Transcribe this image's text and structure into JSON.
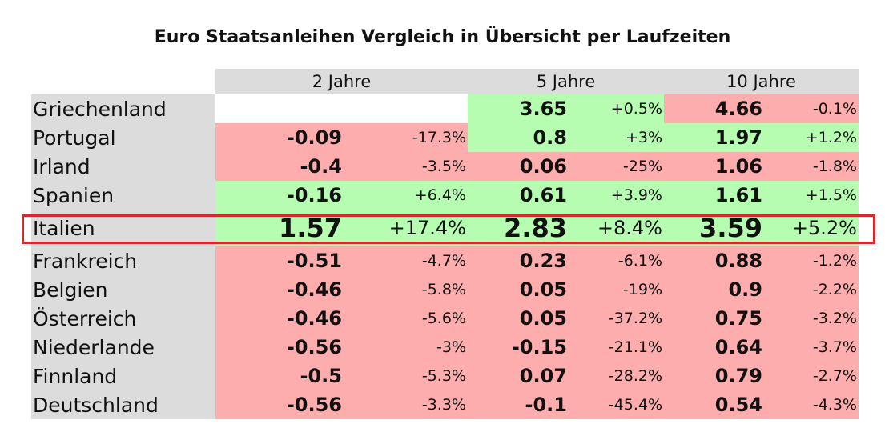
{
  "title": "Euro Staatsanleihen Vergleich in Übersicht per Laufzeiten",
  "colors": {
    "positive": "#b6fcb1",
    "negative": "#fdadad",
    "label_bg": "#dcdcdc",
    "highlight": "#d62a2a"
  },
  "chart_data": {
    "type": "table",
    "title": "Euro Staatsanleihen Vergleich in Übersicht per Laufzeiten",
    "columns": [
      "2 Jahre",
      "5 Jahre",
      "10 Jahre"
    ],
    "highlighted_row": "Italien",
    "rows": [
      {
        "country": "Griechenland",
        "cells": [
          null,
          {
            "value": "3.65",
            "change": "+0.5%",
            "status": "positive"
          },
          {
            "value": "4.66",
            "change": "-0.1%",
            "status": "negative"
          }
        ]
      },
      {
        "country": "Portugal",
        "cells": [
          {
            "value": "-0.09",
            "change": "-17.3%",
            "status": "negative"
          },
          {
            "value": "0.8",
            "change": "+3%",
            "status": "positive"
          },
          {
            "value": "1.97",
            "change": "+1.2%",
            "status": "positive"
          }
        ]
      },
      {
        "country": "Irland",
        "cells": [
          {
            "value": "-0.4",
            "change": "-3.5%",
            "status": "negative"
          },
          {
            "value": "0.06",
            "change": "-25%",
            "status": "negative"
          },
          {
            "value": "1.06",
            "change": "-1.8%",
            "status": "negative"
          }
        ]
      },
      {
        "country": "Spanien",
        "cells": [
          {
            "value": "-0.16",
            "change": "+6.4%",
            "status": "positive"
          },
          {
            "value": "0.61",
            "change": "+3.9%",
            "status": "positive"
          },
          {
            "value": "1.61",
            "change": "+1.5%",
            "status": "positive"
          }
        ]
      },
      {
        "country": "Italien",
        "cells": [
          {
            "value": "1.57",
            "change": "+17.4%",
            "status": "positive"
          },
          {
            "value": "2.83",
            "change": "+8.4%",
            "status": "positive"
          },
          {
            "value": "3.59",
            "change": "+5.2%",
            "status": "positive"
          }
        ]
      },
      {
        "country": "Frankreich",
        "cells": [
          {
            "value": "-0.51",
            "change": "-4.7%",
            "status": "negative"
          },
          {
            "value": "0.23",
            "change": "-6.1%",
            "status": "negative"
          },
          {
            "value": "0.88",
            "change": "-1.2%",
            "status": "negative"
          }
        ]
      },
      {
        "country": "Belgien",
        "cells": [
          {
            "value": "-0.46",
            "change": "-5.8%",
            "status": "negative"
          },
          {
            "value": "0.05",
            "change": "-19%",
            "status": "negative"
          },
          {
            "value": "0.9",
            "change": "-2.2%",
            "status": "negative"
          }
        ]
      },
      {
        "country": "Österreich",
        "cells": [
          {
            "value": "-0.46",
            "change": "-5.6%",
            "status": "negative"
          },
          {
            "value": "0.05",
            "change": "-37.2%",
            "status": "negative"
          },
          {
            "value": "0.75",
            "change": "-3.2%",
            "status": "negative"
          }
        ]
      },
      {
        "country": "Niederlande",
        "cells": [
          {
            "value": "-0.56",
            "change": "-3%",
            "status": "negative"
          },
          {
            "value": "-0.15",
            "change": "-21.1%",
            "status": "negative"
          },
          {
            "value": "0.64",
            "change": "-3.7%",
            "status": "negative"
          }
        ]
      },
      {
        "country": "Finnland",
        "cells": [
          {
            "value": "-0.5",
            "change": "-5.3%",
            "status": "negative"
          },
          {
            "value": "0.07",
            "change": "-28.2%",
            "status": "negative"
          },
          {
            "value": "0.79",
            "change": "-2.7%",
            "status": "negative"
          }
        ]
      },
      {
        "country": "Deutschland",
        "cells": [
          {
            "value": "-0.56",
            "change": "-3.3%",
            "status": "negative"
          },
          {
            "value": "-0.1",
            "change": "-45.4%",
            "status": "negative"
          },
          {
            "value": "0.54",
            "change": "-4.3%",
            "status": "negative"
          }
        ]
      }
    ]
  }
}
